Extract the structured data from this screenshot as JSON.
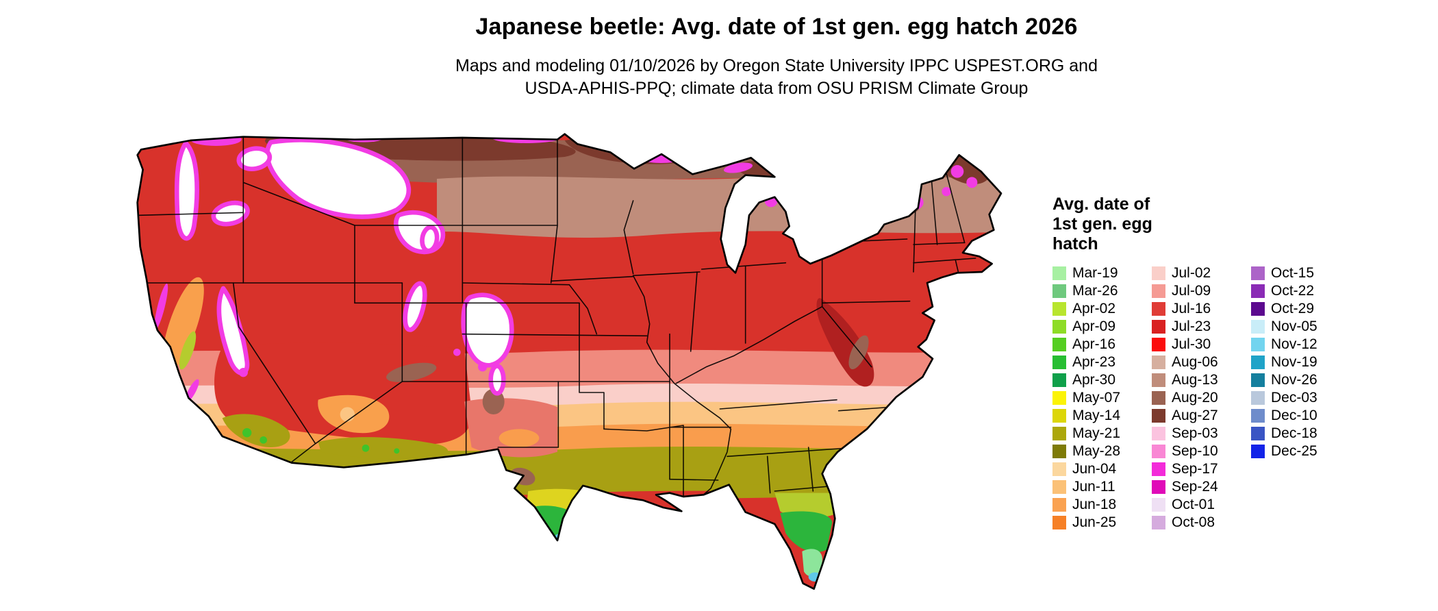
{
  "title": "Japanese beetle: Avg. date of 1st gen. egg hatch 2026",
  "subtitle_line1": "Maps and modeling 01/10/2026 by Oregon State University IPPC USPEST.ORG and",
  "subtitle_line2": "USDA-APHIS-PPQ; climate data from OSU PRISM Climate Group",
  "legend": {
    "title_lines": [
      "Avg. date of",
      "1st gen. egg",
      "hatch"
    ],
    "columns": [
      {
        "items": [
          {
            "label": "Mar-19",
            "color": "#A7F0A2"
          },
          {
            "label": "Mar-26",
            "color": "#6FC97E"
          },
          {
            "label": "Apr-02",
            "color": "#B8E52E"
          },
          {
            "label": "Apr-09",
            "color": "#8EDC26"
          },
          {
            "label": "Apr-16",
            "color": "#55CE21"
          },
          {
            "label": "Apr-23",
            "color": "#27BE32"
          },
          {
            "label": "Apr-30",
            "color": "#0FA04A"
          },
          {
            "label": "May-07",
            "color": "#FBF306"
          },
          {
            "label": "May-14",
            "color": "#DCD607"
          },
          {
            "label": "May-21",
            "color": "#ACA70A"
          },
          {
            "label": "May-28",
            "color": "#7E7B07"
          },
          {
            "label": "Jun-04",
            "color": "#FBD79E"
          },
          {
            "label": "Jun-11",
            "color": "#FBC177"
          },
          {
            "label": "Jun-18",
            "color": "#FAA251"
          },
          {
            "label": "Jun-25",
            "color": "#F68026"
          }
        ]
      },
      {
        "items": [
          {
            "label": "Jul-02",
            "color": "#FACFC9"
          },
          {
            "label": "Jul-09",
            "color": "#F59B94"
          },
          {
            "label": "Jul-16",
            "color": "#E03C36"
          },
          {
            "label": "Jul-23",
            "color": "#D92121"
          },
          {
            "label": "Jul-30",
            "color": "#FB0D0D"
          },
          {
            "label": "Aug-06",
            "color": "#D6AF9F"
          },
          {
            "label": "Aug-13",
            "color": "#C08D7B"
          },
          {
            "label": "Aug-20",
            "color": "#9A6352"
          },
          {
            "label": "Aug-27",
            "color": "#7C3A2D"
          },
          {
            "label": "Sep-03",
            "color": "#FBC3DF"
          },
          {
            "label": "Sep-10",
            "color": "#F987D4"
          },
          {
            "label": "Sep-17",
            "color": "#F32BD9"
          },
          {
            "label": "Sep-24",
            "color": "#E00BB8"
          },
          {
            "label": "Oct-01",
            "color": "#EFE0F4"
          },
          {
            "label": "Oct-08",
            "color": "#D5ABDE"
          }
        ]
      },
      {
        "items": [
          {
            "label": "Oct-15",
            "color": "#AC64C8"
          },
          {
            "label": "Oct-22",
            "color": "#8A2BB5"
          },
          {
            "label": "Oct-29",
            "color": "#5C0A8F"
          },
          {
            "label": "Nov-05",
            "color": "#C9EDF8"
          },
          {
            "label": "Nov-12",
            "color": "#72D4EF"
          },
          {
            "label": "Nov-19",
            "color": "#1FA3C8"
          },
          {
            "label": "Nov-26",
            "color": "#147F9E"
          },
          {
            "label": "Dec-03",
            "color": "#B9C8DC"
          },
          {
            "label": "Dec-10",
            "color": "#6E8CCB"
          },
          {
            "label": "Dec-18",
            "color": "#3A55C4"
          },
          {
            "label": "Dec-25",
            "color": "#1223E8"
          }
        ]
      }
    ]
  }
}
